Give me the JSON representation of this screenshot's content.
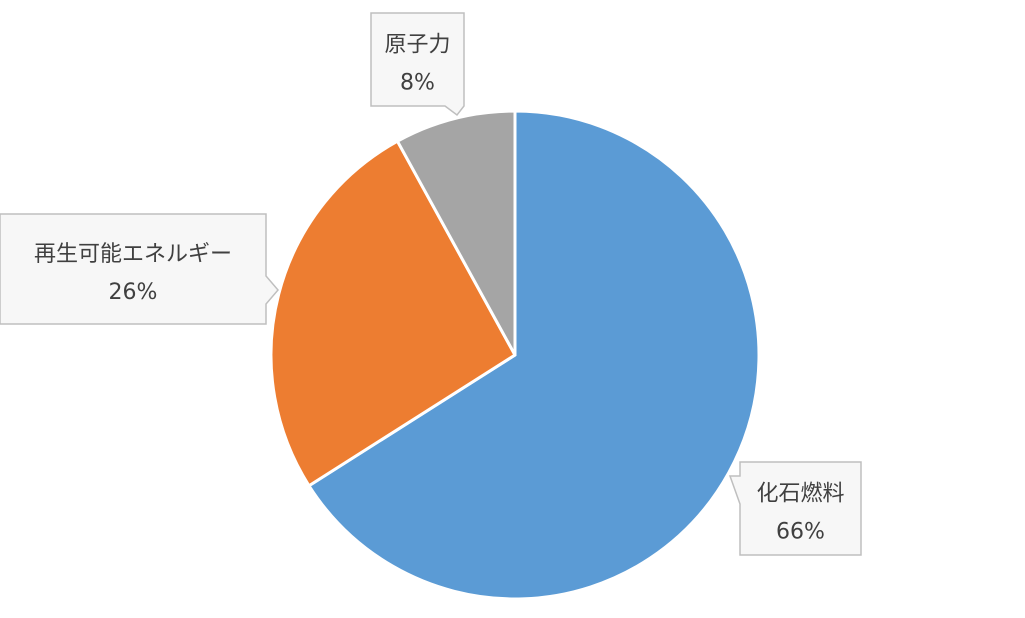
{
  "chart_data": {
    "type": "pie",
    "title": "",
    "slices": [
      {
        "label": "化石燃料",
        "value": 66,
        "value_label": "66%",
        "color": "#5B9BD5"
      },
      {
        "label": "再生可能エネルギー",
        "value": 26,
        "value_label": "26%",
        "color": "#ED7D31"
      },
      {
        "label": "原子力",
        "value": 8,
        "value_label": "8%",
        "color": "#A5A5A5"
      }
    ],
    "start_angle": "12 o'clock",
    "direction": "clockwise",
    "legend": "none",
    "data_labels": "callouts with category name and percentage"
  }
}
